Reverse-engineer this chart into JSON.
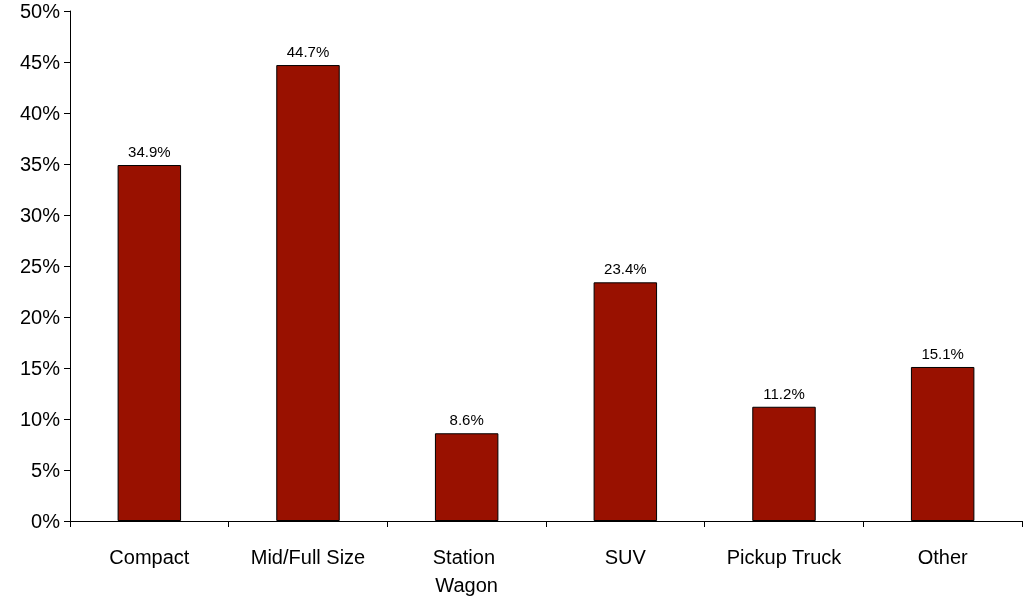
{
  "chart_data": {
    "type": "bar",
    "categories": [
      "Compact",
      "Mid/Full Size",
      "Station Wagon",
      "SUV",
      "Pickup Truck",
      "Other"
    ],
    "values": [
      34.9,
      44.7,
      8.6,
      23.4,
      11.2,
      15.1
    ],
    "value_labels": [
      "34.9%",
      "44.7%",
      "8.6%",
      "23.4%",
      "11.2%",
      "15.1%"
    ],
    "color": "#991100",
    "ylim": [
      0,
      50
    ],
    "yticks": [
      {
        "value": 0,
        "label": "0%"
      },
      {
        "value": 5,
        "label": "5%"
      },
      {
        "value": 10,
        "label": "10%"
      },
      {
        "value": 15,
        "label": "15%"
      },
      {
        "value": 20,
        "label": "20%"
      },
      {
        "value": 25,
        "label": "25%"
      },
      {
        "value": 30,
        "label": "30%"
      },
      {
        "value": 35,
        "label": "35%"
      },
      {
        "value": 40,
        "label": "40%"
      },
      {
        "value": 45,
        "label": "45%"
      },
      {
        "value": 50,
        "label": "50%"
      }
    ],
    "grid": false
  }
}
